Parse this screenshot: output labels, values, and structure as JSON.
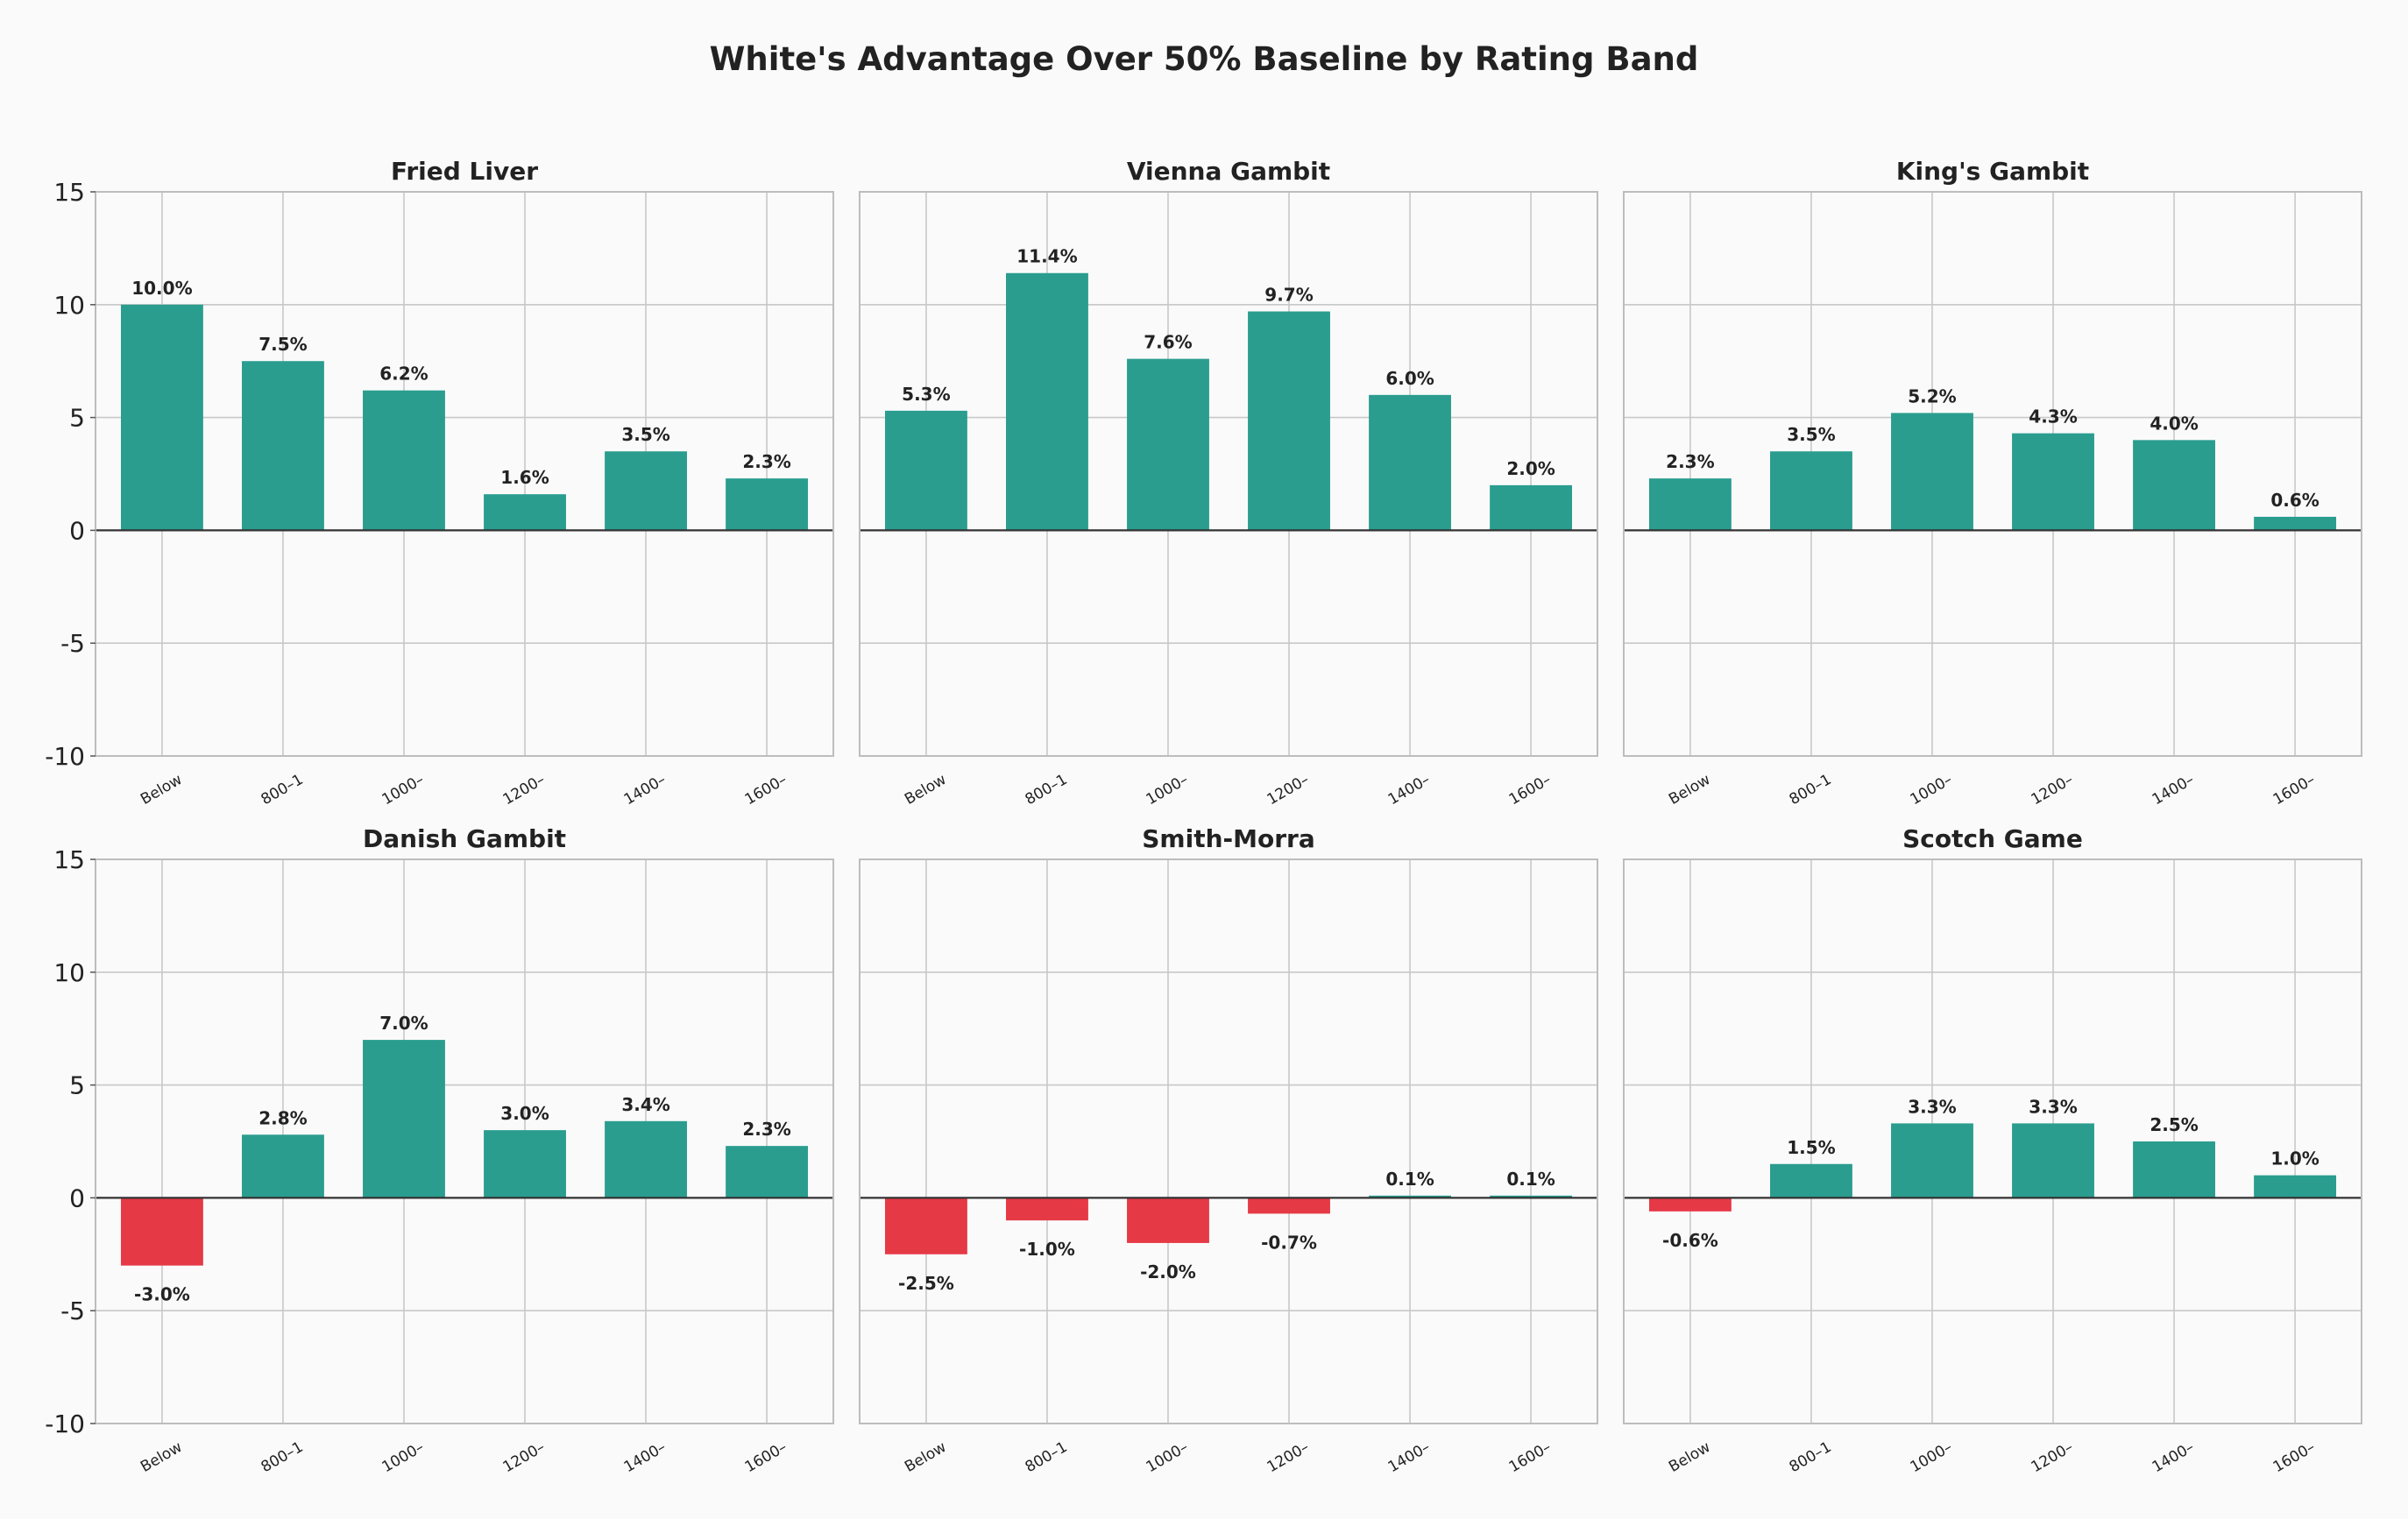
{
  "title": "White's Advantage Over 50% Baseline by Rating Band",
  "colors": {
    "positive": "#2a9d8f",
    "negative": "#e63946",
    "grid": "#c8c8c8",
    "frame": "#bdbdbd",
    "zero_line": "#333333",
    "text": "#222222",
    "background": "#fafafa"
  },
  "chart_data": [
    {
      "type": "bar",
      "title": "Fried Liver",
      "categories": [
        "Below",
        "800–1",
        "1000–",
        "1200–",
        "1400–",
        "1600–"
      ],
      "values": [
        10.0,
        7.5,
        6.2,
        1.6,
        3.5,
        2.3
      ],
      "labels": [
        "10.0%",
        "7.5%",
        "6.2%",
        "1.6%",
        "3.5%",
        "2.3%"
      ],
      "ylim": [
        -10,
        15
      ],
      "yticks": [
        "15",
        "10",
        "5",
        "0",
        "-5",
        "-10"
      ],
      "grid": true
    },
    {
      "type": "bar",
      "title": "Vienna Gambit",
      "categories": [
        "Below",
        "800–1",
        "1000–",
        "1200–",
        "1400–",
        "1600–"
      ],
      "values": [
        5.3,
        11.4,
        7.6,
        9.7,
        6.0,
        2.0
      ],
      "labels": [
        "5.3%",
        "11.4%",
        "7.6%",
        "9.7%",
        "6.0%",
        "2.0%"
      ],
      "ylim": [
        -10,
        15
      ],
      "yticks": [],
      "grid": true
    },
    {
      "type": "bar",
      "title": "King's Gambit",
      "categories": [
        "Below",
        "800–1",
        "1000–",
        "1200–",
        "1400–",
        "1600–"
      ],
      "values": [
        2.3,
        3.5,
        5.2,
        4.3,
        4.0,
        0.6
      ],
      "labels": [
        "2.3%",
        "3.5%",
        "5.2%",
        "4.3%",
        "4.0%",
        "0.6%"
      ],
      "ylim": [
        -10,
        15
      ],
      "yticks": [],
      "grid": true
    },
    {
      "type": "bar",
      "title": "Danish Gambit",
      "categories": [
        "Below",
        "800–1",
        "1000–",
        "1200–",
        "1400–",
        "1600–"
      ],
      "values": [
        -3.0,
        2.8,
        7.0,
        3.0,
        3.4,
        2.3
      ],
      "labels": [
        "-3.0%",
        "2.8%",
        "7.0%",
        "3.0%",
        "3.4%",
        "2.3%"
      ],
      "ylim": [
        -10,
        15
      ],
      "yticks": [
        "15",
        "10",
        "5",
        "0",
        "-5",
        "-10"
      ],
      "grid": true
    },
    {
      "type": "bar",
      "title": "Smith-Morra",
      "categories": [
        "Below",
        "800–1",
        "1000–",
        "1200–",
        "1400–",
        "1600–"
      ],
      "values": [
        -2.5,
        -1.0,
        -2.0,
        -0.7,
        0.1,
        0.1
      ],
      "labels": [
        "-2.5%",
        "-1.0%",
        "-2.0%",
        "-0.7%",
        "0.1%",
        "0.1%"
      ],
      "ylim": [
        -10,
        15
      ],
      "yticks": [],
      "grid": true
    },
    {
      "type": "bar",
      "title": "Scotch Game",
      "categories": [
        "Below",
        "800–1",
        "1000–",
        "1200–",
        "1400–",
        "1600–"
      ],
      "values": [
        -0.6,
        1.5,
        3.3,
        3.3,
        2.5,
        1.0
      ],
      "labels": [
        "-0.6%",
        "1.5%",
        "3.3%",
        "3.3%",
        "2.5%",
        "1.0%"
      ],
      "ylim": [
        -10,
        15
      ],
      "yticks": [],
      "grid": true
    }
  ]
}
